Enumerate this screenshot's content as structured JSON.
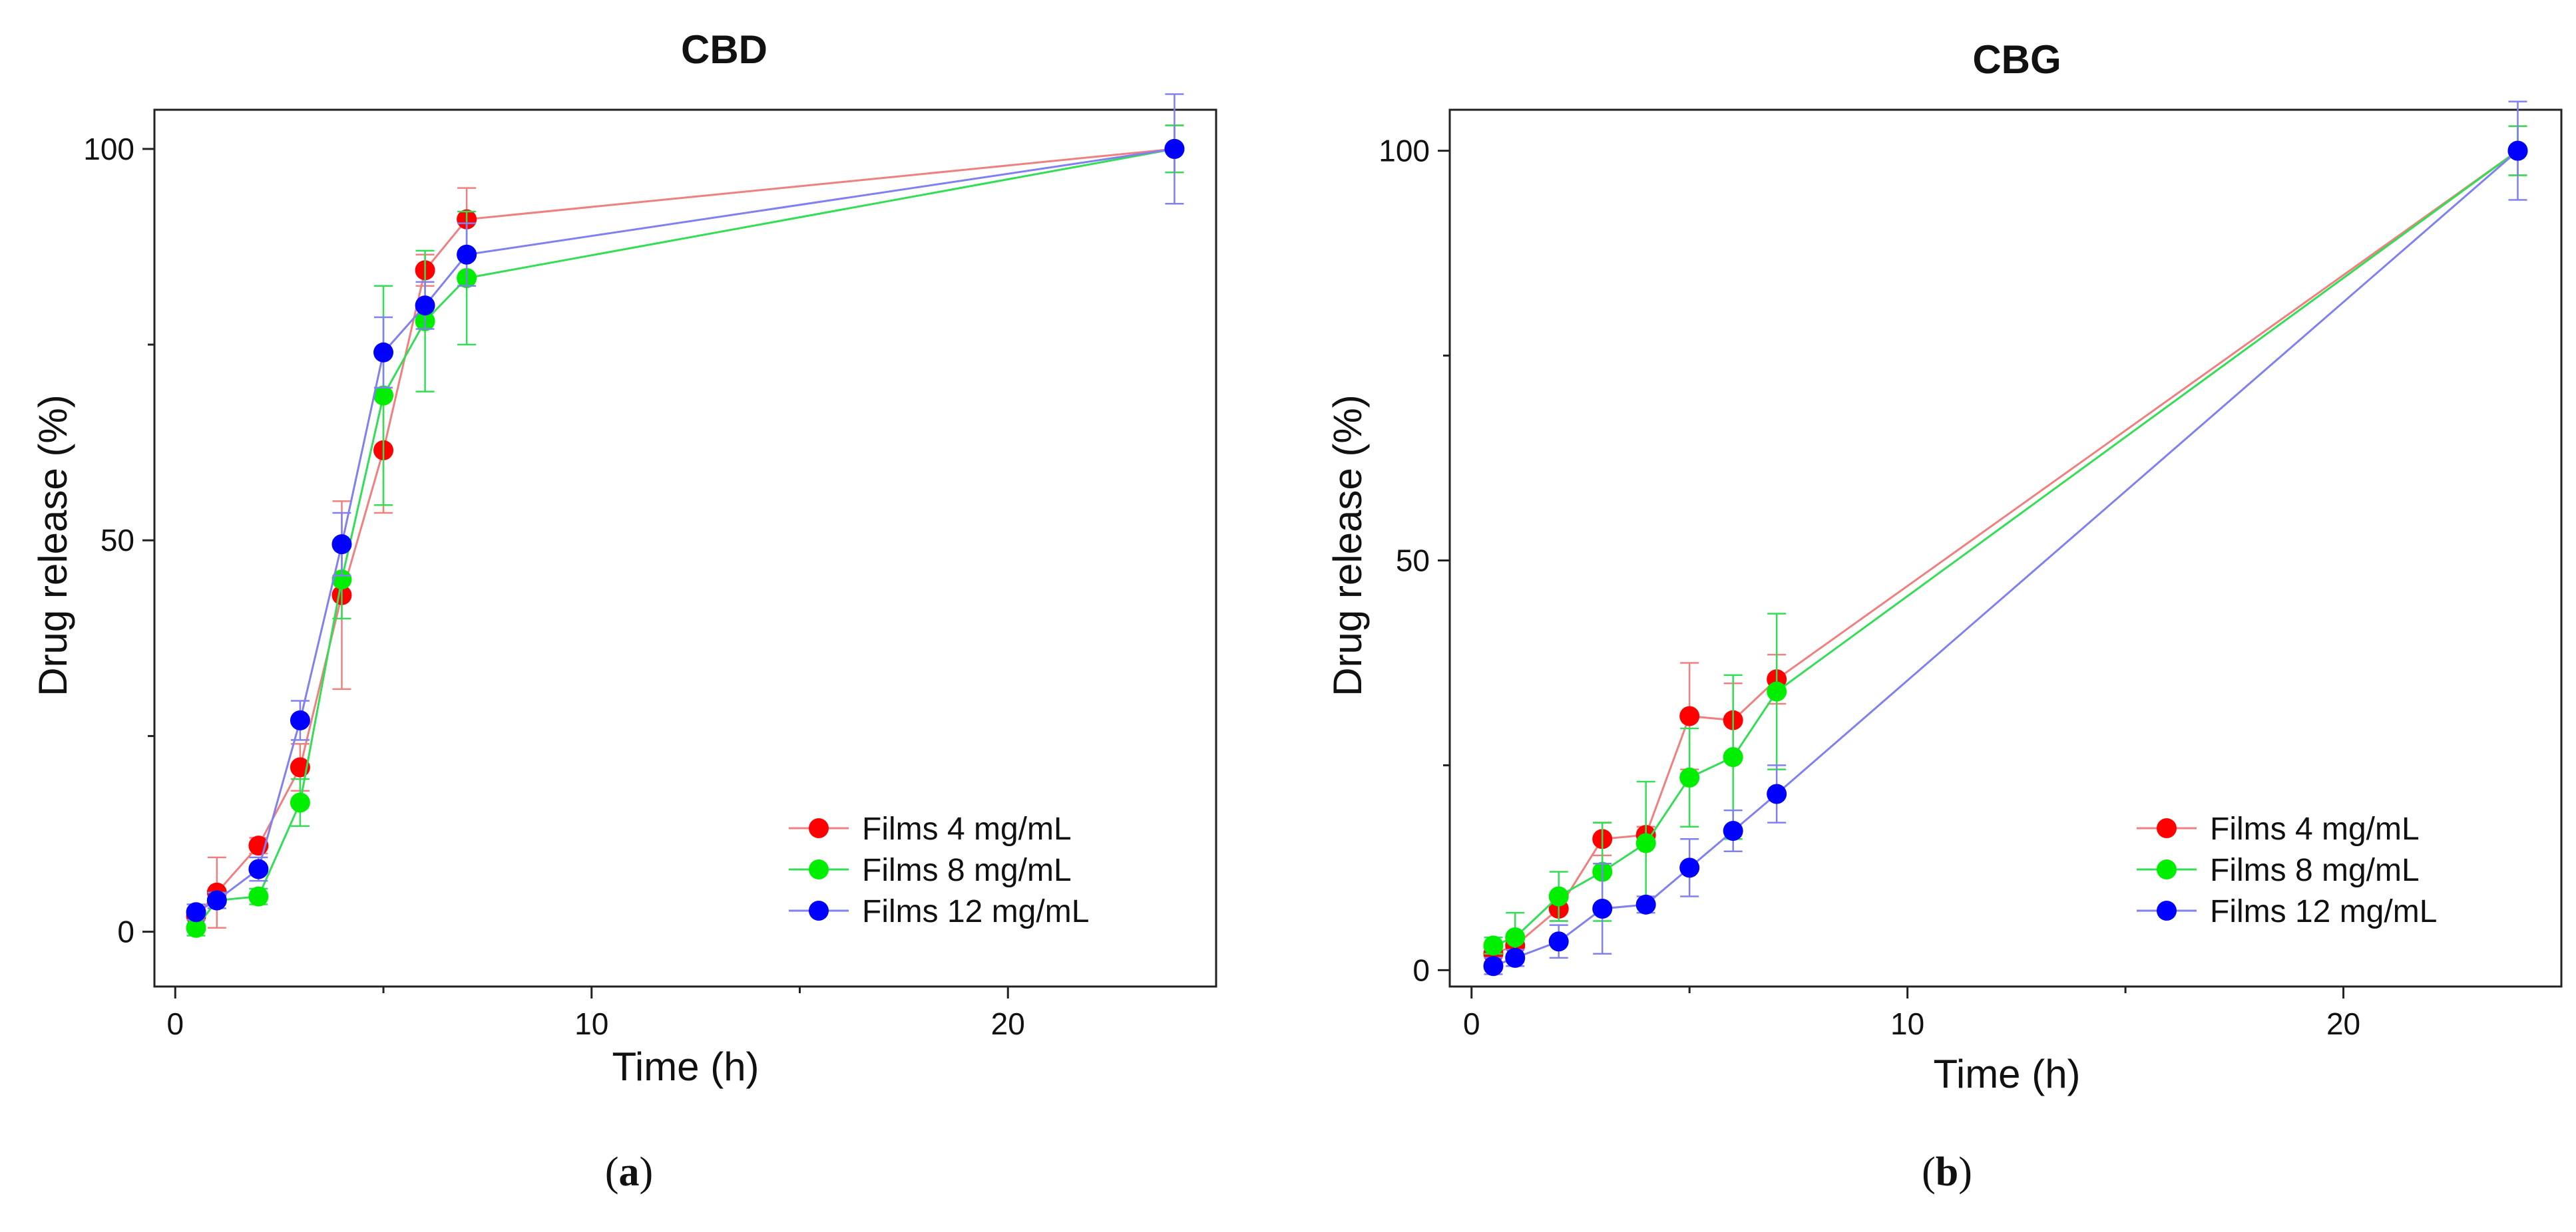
{
  "chart_data": [
    {
      "type": "line",
      "title": "CBD",
      "xlabel": "Time (h)",
      "ylabel": "Drug release (%)",
      "xlim": [
        -0.5,
        25
      ],
      "ylim": [
        -7,
        105
      ],
      "xticks": [
        0,
        10,
        20
      ],
      "yticks": [
        0,
        50,
        100
      ],
      "x": [
        0.5,
        1,
        2,
        3,
        4,
        5,
        6,
        7,
        24
      ],
      "series": [
        {
          "name": "Films 4 mg/mL",
          "color": "#ff0000",
          "line_color": "#f08080",
          "values": [
            2,
            5,
            11,
            21,
            43,
            61.5,
            84.5,
            91,
            100
          ],
          "errors": [
            1,
            4.5,
            1,
            3,
            12,
            8,
            2,
            4,
            3
          ]
        },
        {
          "name": "Films 8 mg/mL",
          "color": "#00ee00",
          "line_color": "#33dd55",
          "values": [
            0.5,
            4,
            4.5,
            16.5,
            45,
            68.5,
            78,
            83.5,
            100
          ],
          "errors": [
            1,
            1,
            1,
            3,
            5,
            14,
            9,
            8.5,
            3
          ]
        },
        {
          "name": "Films 12 mg/mL",
          "color": "#0000ff",
          "line_color": "#8080f0",
          "values": [
            2.5,
            4,
            8,
            27,
            49.5,
            74,
            80,
            86.5,
            100
          ],
          "errors": [
            1,
            1,
            1.5,
            2.5,
            4,
            4.5,
            3,
            4,
            7
          ]
        }
      ],
      "legend": "bottom-right"
    },
    {
      "type": "line",
      "title": "CBG",
      "xlabel": "Time (h)",
      "ylabel": "Drug release (%)",
      "xlim": [
        -0.5,
        25
      ],
      "ylim": [
        -2,
        105
      ],
      "xticks": [
        0,
        10,
        20
      ],
      "yticks": [
        0,
        50,
        100
      ],
      "x": [
        0.5,
        1,
        2,
        3,
        4,
        5,
        6,
        7,
        24
      ],
      "series": [
        {
          "name": "Films 4 mg/mL",
          "color": "#ff0000",
          "line_color": "#f08080",
          "values": [
            2,
            3,
            7.5,
            16,
            16.5,
            31,
            30.5,
            35.5,
            100
          ],
          "errors": [
            1,
            1,
            1.5,
            2,
            1,
            6.5,
            4.5,
            3,
            3
          ]
        },
        {
          "name": "Films 8 mg/mL",
          "color": "#00ee00",
          "line_color": "#33dd55",
          "values": [
            3,
            4,
            9,
            12,
            15.5,
            23.5,
            26,
            34,
            100
          ],
          "errors": [
            1,
            3,
            3,
            6,
            7.5,
            6,
            10,
            9.5,
            3
          ]
        },
        {
          "name": "Films 12 mg/mL",
          "color": "#0000ff",
          "line_color": "#8080f0",
          "values": [
            0.5,
            1.5,
            3.5,
            7.5,
            8,
            12.5,
            17,
            21.5,
            100
          ],
          "errors": [
            1,
            1,
            2,
            5.5,
            1,
            3.5,
            2.5,
            3.5,
            6
          ]
        }
      ],
      "legend": "bottom-right"
    }
  ],
  "captions": [
    {
      "open": "(",
      "letter": "a",
      "close": ")"
    },
    {
      "open": "(",
      "letter": "b",
      "close": ")"
    }
  ]
}
